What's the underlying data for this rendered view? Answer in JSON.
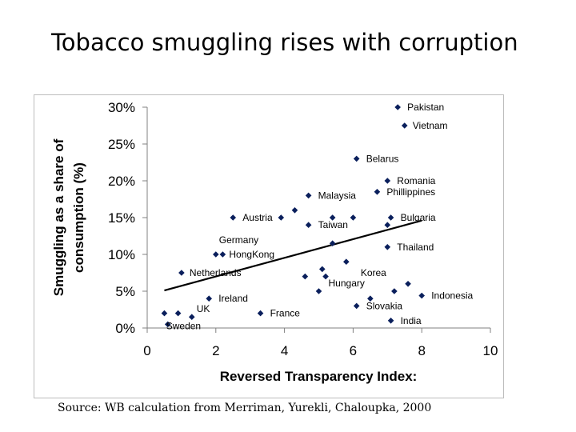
{
  "title": "Tobacco smuggling rises with corruption",
  "source": "Source: WB calculation from Merriman, Yurekli, Chaloupka, 2000",
  "colors": {
    "marker": "#0a1f5c",
    "trend": "#000000",
    "axis": "#808080"
  },
  "chart_data": {
    "type": "scatter",
    "xlabel": "Reversed Transparency Index:",
    "ylabel_lines": [
      "Smuggling as a share of",
      "consumption (%)"
    ],
    "xlim": [
      0,
      10
    ],
    "ylim": [
      0,
      30
    ],
    "x_ticks": [
      0,
      2,
      4,
      6,
      8,
      10
    ],
    "y_ticks": [
      0,
      5,
      10,
      15,
      20,
      25,
      30
    ],
    "y_tick_labels": [
      "0%",
      "5%",
      "10%",
      "15%",
      "20%",
      "25%",
      "30%"
    ],
    "grid": false,
    "trendline": {
      "x": [
        0.5,
        8.0
      ],
      "y": [
        5.1,
        14.6
      ]
    },
    "points": [
      {
        "x": 7.3,
        "y": 30.0,
        "label": "Pakistan"
      },
      {
        "x": 7.5,
        "y": 27.5,
        "label": "Vietnam"
      },
      {
        "x": 6.1,
        "y": 23.0,
        "label": "Belarus"
      },
      {
        "x": 7.0,
        "y": 20.0,
        "label": "Romania"
      },
      {
        "x": 6.7,
        "y": 18.5,
        "label": "Phillippines"
      },
      {
        "x": 4.7,
        "y": 18.0,
        "label": "Malaysia"
      },
      {
        "x": 4.3,
        "y": 16.0,
        "label": ""
      },
      {
        "x": 2.5,
        "y": 15.0,
        "label": ""
      },
      {
        "x": 3.9,
        "y": 15.0,
        "label": "Austria"
      },
      {
        "x": 5.4,
        "y": 15.0,
        "label": ""
      },
      {
        "x": 6.0,
        "y": 15.0,
        "label": ""
      },
      {
        "x": 7.1,
        "y": 15.0,
        "label": "Bulgaria"
      },
      {
        "x": 4.7,
        "y": 14.0,
        "label": "Taiwan"
      },
      {
        "x": 7.0,
        "y": 14.0,
        "label": ""
      },
      {
        "x": 5.4,
        "y": 11.5,
        "label": ""
      },
      {
        "x": 7.0,
        "y": 11.0,
        "label": "Thailand"
      },
      {
        "x": 2.0,
        "y": 10.0,
        "label": "Germany"
      },
      {
        "x": 2.2,
        "y": 10.0,
        "label": "HongKong"
      },
      {
        "x": 5.8,
        "y": 9.0,
        "label": "Korea"
      },
      {
        "x": 1.0,
        "y": 7.5,
        "label": "Netherlands"
      },
      {
        "x": 5.1,
        "y": 8.0,
        "label": ""
      },
      {
        "x": 4.6,
        "y": 7.0,
        "label": ""
      },
      {
        "x": 5.2,
        "y": 7.0,
        "label": ""
      },
      {
        "x": 7.6,
        "y": 6.0,
        "label": ""
      },
      {
        "x": 5.0,
        "y": 5.0,
        "label": "Hungary"
      },
      {
        "x": 7.2,
        "y": 5.0,
        "label": ""
      },
      {
        "x": 8.0,
        "y": 4.4,
        "label": "Indonesia"
      },
      {
        "x": 1.8,
        "y": 4.0,
        "label": "Ireland"
      },
      {
        "x": 6.5,
        "y": 4.0,
        "label": ""
      },
      {
        "x": 6.1,
        "y": 3.0,
        "label": "Slovakia"
      },
      {
        "x": 0.5,
        "y": 2.0,
        "label": ""
      },
      {
        "x": 0.9,
        "y": 2.0,
        "label": ""
      },
      {
        "x": 1.3,
        "y": 1.5,
        "label": "UK"
      },
      {
        "x": 3.3,
        "y": 2.0,
        "label": "France"
      },
      {
        "x": 7.1,
        "y": 1.0,
        "label": "India"
      },
      {
        "x": 0.6,
        "y": 0.5,
        "label": "Sweden"
      }
    ]
  }
}
